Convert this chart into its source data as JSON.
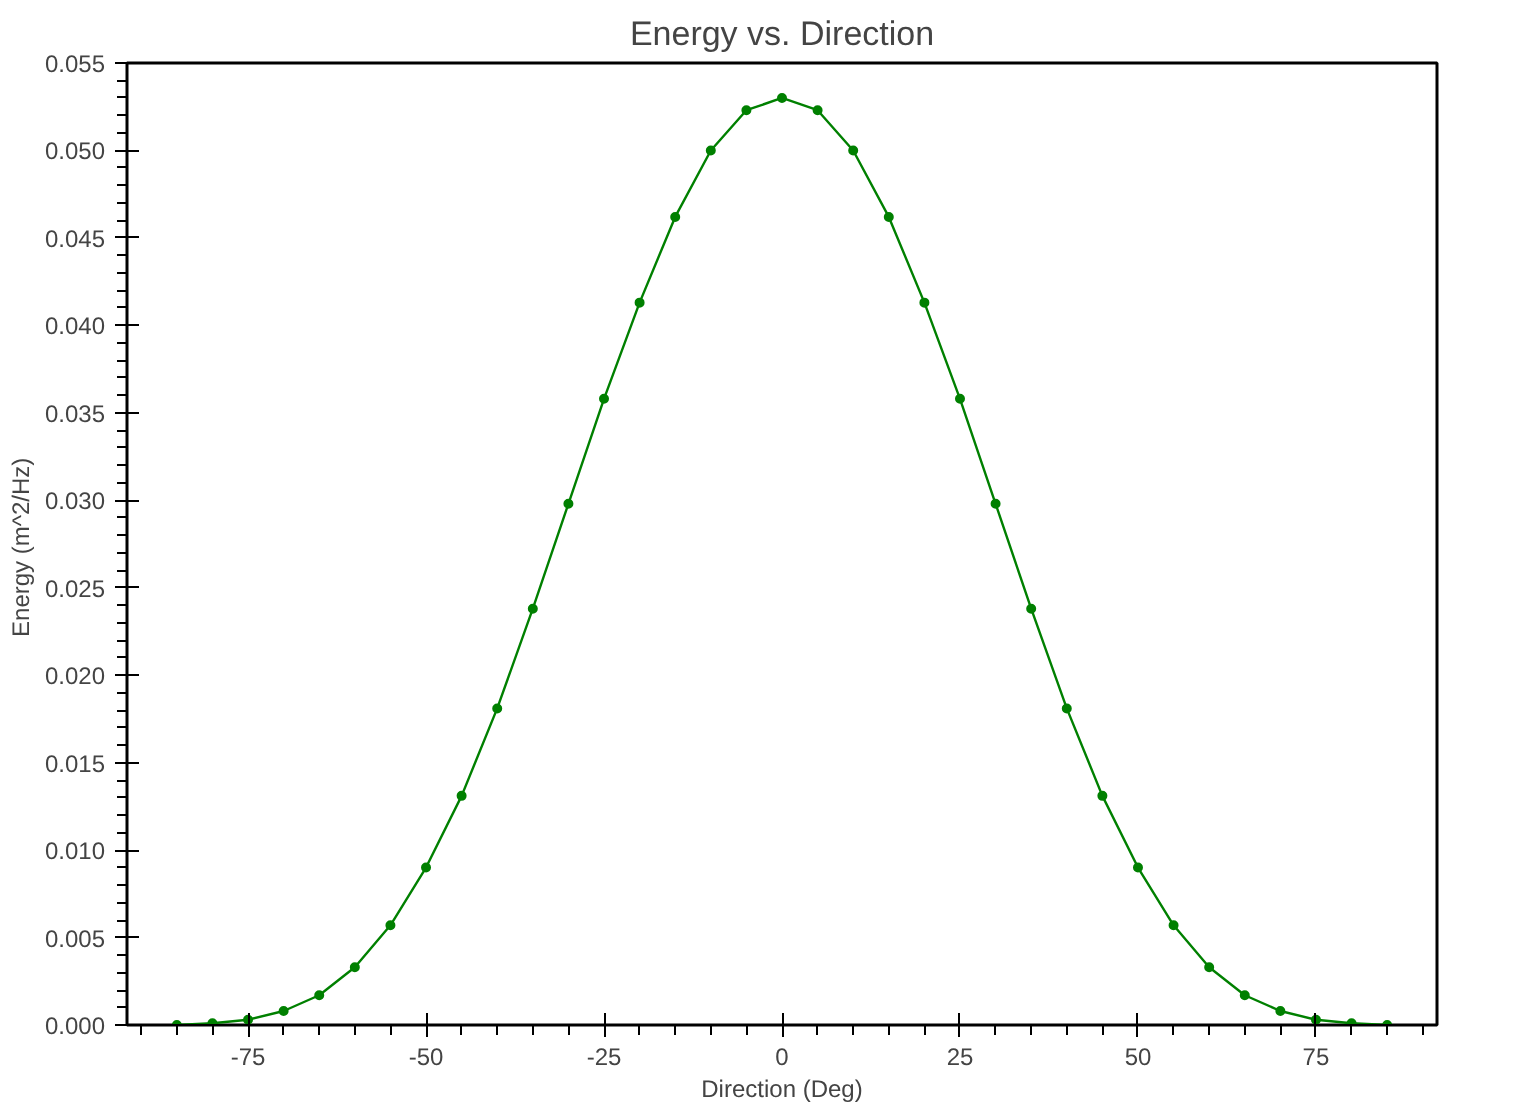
{
  "chart_data": {
    "type": "line",
    "title": "Energy vs. Direction",
    "xlabel": "Direction (Deg)",
    "ylabel": "Energy  (m^2/Hz)",
    "x": [
      -85,
      -80,
      -75,
      -70,
      -65,
      -60,
      -55,
      -50,
      -45,
      -40,
      -35,
      -30,
      -25,
      -20,
      -15,
      -10,
      -5,
      0,
      5,
      10,
      15,
      20,
      25,
      30,
      35,
      40,
      45,
      50,
      55,
      60,
      65,
      70,
      75,
      80,
      85
    ],
    "series": [
      {
        "color": "#008000",
        "values": [
          0.0,
          0.0001,
          0.0003,
          0.0008,
          0.0017,
          0.0033,
          0.0057,
          0.009,
          0.0131,
          0.0181,
          0.0238,
          0.0298,
          0.0358,
          0.0413,
          0.0462,
          0.05,
          0.0523,
          0.053,
          0.0523,
          0.05,
          0.0462,
          0.0413,
          0.0358,
          0.0298,
          0.0238,
          0.0181,
          0.0131,
          0.009,
          0.0057,
          0.0033,
          0.0017,
          0.0008,
          0.0003,
          0.0001,
          0.0
        ]
      }
    ],
    "xlim": [
      -92,
      92
    ],
    "ylim": [
      0,
      0.055
    ],
    "xticks": [
      -75,
      -50,
      -25,
      0,
      25,
      50,
      75
    ],
    "yticks": [
      {
        "value": 0,
        "label": "0.000"
      },
      {
        "value": 0.005,
        "label": "0.005"
      },
      {
        "value": 0.01,
        "label": "0.010"
      },
      {
        "value": 0.015,
        "label": "0.015"
      },
      {
        "value": 0.02,
        "label": "0.020"
      },
      {
        "value": 0.025,
        "label": "0.025"
      },
      {
        "value": 0.03,
        "label": "0.030"
      },
      {
        "value": 0.035,
        "label": "0.035"
      },
      {
        "value": 0.04,
        "label": "0.040"
      },
      {
        "value": 0.045,
        "label": "0.045"
      },
      {
        "value": 0.05,
        "label": "0.050"
      },
      {
        "value": 0.055,
        "label": "0.055"
      }
    ],
    "grid": false,
    "marker": "circle",
    "line_style": "solid"
  }
}
